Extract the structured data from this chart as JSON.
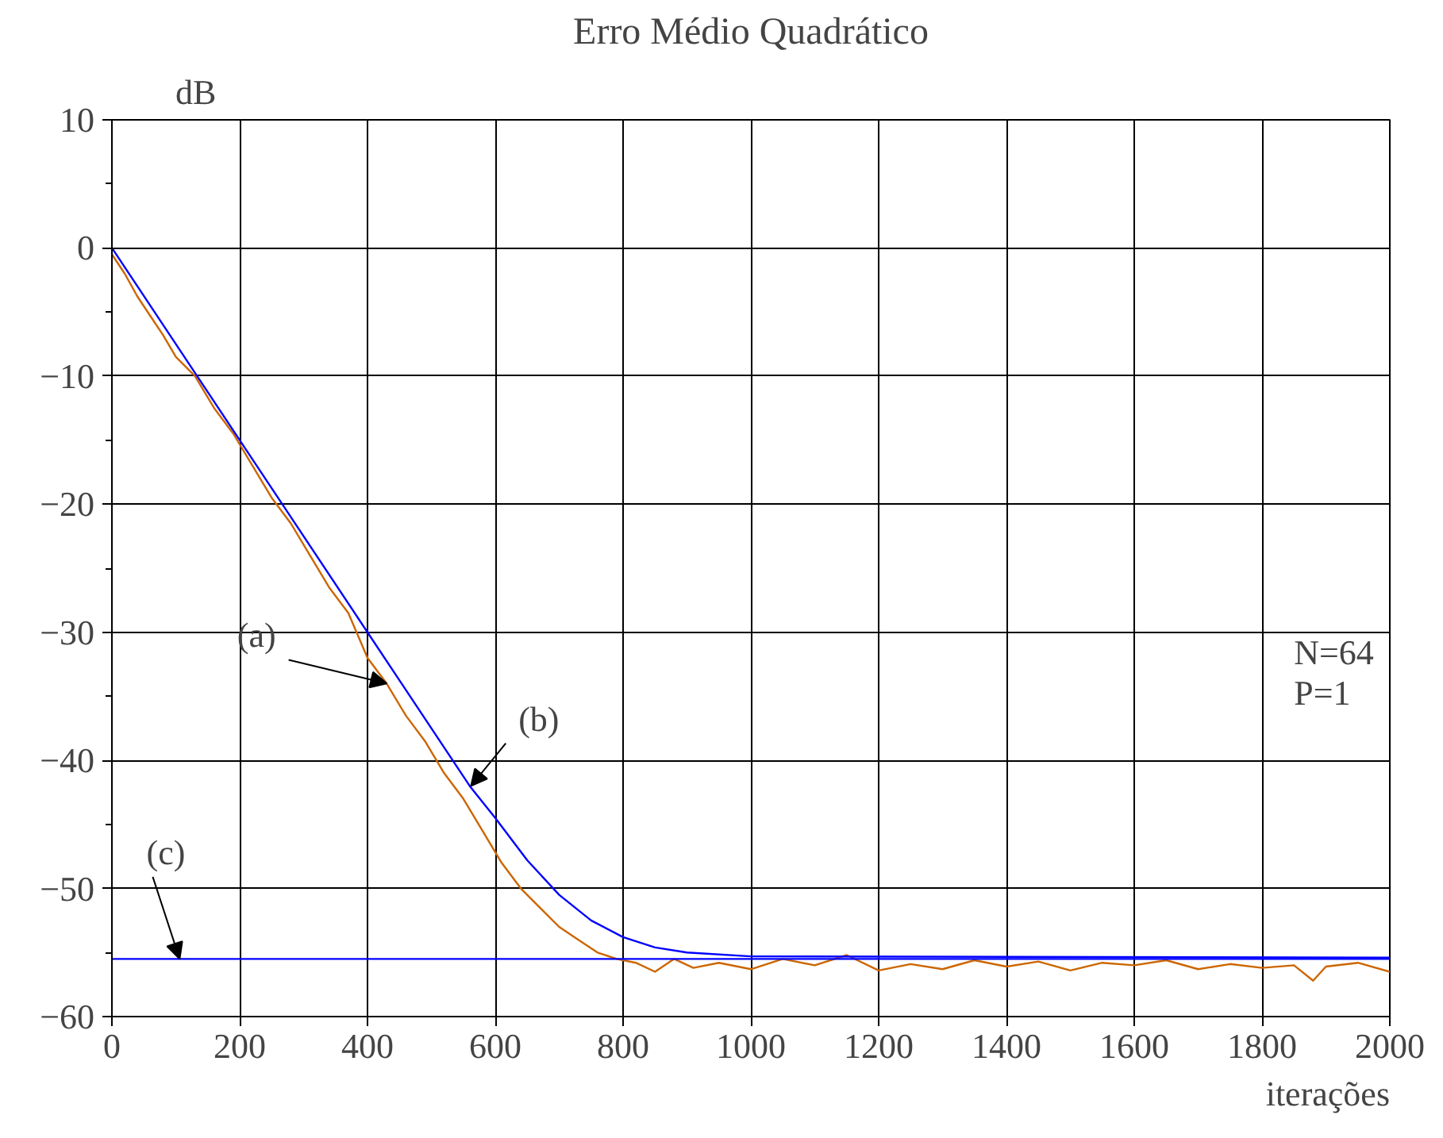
{
  "chart_data": {
    "type": "line",
    "title": "Erro Médio Quadrático",
    "xlabel": "iterações",
    "ylabel": "dB",
    "xlim": [
      0,
      2000
    ],
    "ylim": [
      -60,
      10
    ],
    "xticks": [
      0,
      200,
      400,
      600,
      800,
      1000,
      1200,
      1400,
      1600,
      1800,
      2000
    ],
    "yticks": [
      -60,
      -50,
      -40,
      -30,
      -20,
      -10,
      0,
      10
    ],
    "grid": true,
    "marker": "none",
    "line_style": "solid",
    "series": [
      {
        "color": "#cc6600",
        "x": [
          0,
          20,
          40,
          60,
          80,
          100,
          130,
          160,
          190,
          220,
          250,
          280,
          310,
          340,
          370,
          400,
          430,
          460,
          490,
          520,
          550,
          580,
          610,
          640,
          670,
          700,
          730,
          760,
          790,
          820,
          850,
          880,
          910,
          950,
          1000,
          1050,
          1100,
          1150,
          1200,
          1250,
          1300,
          1350,
          1400,
          1450,
          1500,
          1550,
          1600,
          1650,
          1700,
          1750,
          1800,
          1850,
          1880,
          1900,
          1950,
          2000
        ],
        "values": [
          -0.5,
          -2,
          -3.8,
          -5.3,
          -6.8,
          -8.5,
          -10,
          -12.5,
          -14.5,
          -17,
          -19.5,
          -21.5,
          -24,
          -26.5,
          -28.5,
          -32,
          -34,
          -36.5,
          -38.5,
          -41,
          -43,
          -45.5,
          -48,
          -50,
          -51.5,
          -53,
          -54,
          -55,
          -55.5,
          -55.8,
          -56.5,
          -55.5,
          -56.2,
          -55.8,
          -56.3,
          -55.5,
          -56,
          -55.2,
          -56.4,
          -55.9,
          -56.3,
          -55.6,
          -56.1,
          -55.7,
          -56.4,
          -55.8,
          -56,
          -55.6,
          -56.3,
          -55.9,
          -56.2,
          -56,
          -57.2,
          -56.1,
          -55.8,
          -56.5
        ]
      },
      {
        "color": "#0000ff",
        "x": [
          0,
          200,
          400,
          560,
          600,
          650,
          700,
          750,
          800,
          850,
          900,
          1000,
          2000
        ],
        "values": [
          0,
          -15,
          -30,
          -42,
          -44.5,
          -47.8,
          -50.5,
          -52.5,
          -53.8,
          -54.6,
          -55,
          -55.3,
          -55.4
        ]
      },
      {
        "color": "#0000ff",
        "x": [
          0,
          2000
        ],
        "values": [
          -55.5,
          -55.5
        ]
      }
    ],
    "annotations": [
      {
        "text": "(a)",
        "x": 430,
        "y": -34
      },
      {
        "text": "(b)",
        "x": 562,
        "y": -42
      },
      {
        "text": "(c)",
        "x": 106,
        "y": -55.5
      },
      "N=64",
      "P=1"
    ]
  }
}
